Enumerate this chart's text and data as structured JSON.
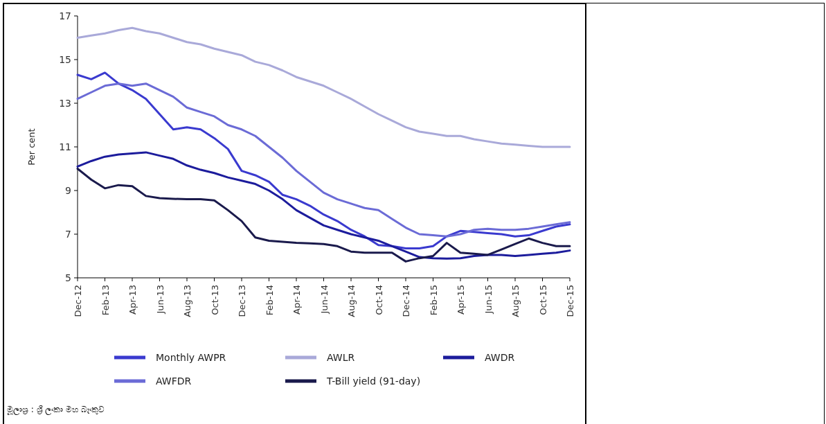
{
  "chart_data": {
    "type": "line",
    "ylabel": "Per cent",
    "ylim": [
      5,
      17
    ],
    "yticks": [
      5,
      7,
      9,
      11,
      13,
      15,
      17
    ],
    "legend": "bottom",
    "categories": [
      "Dec-12",
      null,
      "Feb-13",
      null,
      "Apr-13",
      null,
      "Jun-13",
      null,
      "Aug-13",
      null,
      "Oct-13",
      null,
      "Dec-13",
      null,
      "Feb-14",
      null,
      "Apr-14",
      null,
      "Jun-14",
      null,
      "Aug-14",
      null,
      "Oct-14",
      null,
      "Dec-14",
      null,
      "Feb-15",
      null,
      "Apr-15",
      null,
      "Jun-15",
      null,
      "Aug-15",
      null,
      "Oct-15",
      null,
      "Dec-15"
    ],
    "series": [
      {
        "name": "Monthly AWPR",
        "color": "#3a3acf",
        "values": [
          14.3,
          14.1,
          14.4,
          13.9,
          13.6,
          13.2,
          12.5,
          11.8,
          11.9,
          11.8,
          11.4,
          10.9,
          9.9,
          9.7,
          9.4,
          8.8,
          8.6,
          8.3,
          7.9,
          7.6,
          7.2,
          6.9,
          6.5,
          6.45,
          6.35,
          6.35,
          6.45,
          6.9,
          7.15,
          7.1,
          7.05,
          7.0,
          6.9,
          6.95,
          7.15,
          7.35,
          7.45
        ]
      },
      {
        "name": "AWLR",
        "color": "#a9a9d9",
        "values": [
          16.0,
          16.1,
          16.2,
          16.35,
          16.45,
          16.3,
          16.2,
          16.0,
          15.8,
          15.7,
          15.5,
          15.35,
          15.2,
          14.9,
          14.75,
          14.5,
          14.2,
          14.0,
          13.8,
          13.5,
          13.2,
          12.85,
          12.5,
          12.2,
          11.9,
          11.7,
          11.6,
          11.5,
          11.5,
          11.35,
          11.25,
          11.15,
          11.1,
          11.05,
          11.0,
          11.0,
          11.0
        ]
      },
      {
        "name": "AWDR",
        "color": "#1c1c9c",
        "values": [
          10.1,
          10.35,
          10.55,
          10.65,
          10.7,
          10.75,
          10.6,
          10.45,
          10.15,
          9.95,
          9.8,
          9.6,
          9.45,
          9.3,
          9.0,
          8.6,
          8.1,
          7.75,
          7.4,
          7.2,
          7.0,
          6.85,
          6.7,
          6.45,
          6.2,
          5.95,
          5.9,
          5.88,
          5.9,
          6.0,
          6.05,
          6.05,
          6.0,
          6.05,
          6.1,
          6.15,
          6.25
        ]
      },
      {
        "name": "AWFDR",
        "color": "#6b6bd6",
        "values": [
          13.2,
          13.5,
          13.8,
          13.9,
          13.8,
          13.9,
          13.6,
          13.3,
          12.8,
          12.6,
          12.4,
          12.0,
          11.8,
          11.5,
          11.0,
          10.5,
          9.9,
          9.4,
          8.9,
          8.6,
          8.4,
          8.2,
          8.1,
          7.7,
          7.3,
          7.0,
          6.95,
          6.9,
          7.0,
          7.2,
          7.25,
          7.2,
          7.2,
          7.25,
          7.35,
          7.45,
          7.55
        ]
      },
      {
        "name": "T-Bill yield (91-day)",
        "color": "#1a1a4c",
        "values": [
          10.0,
          9.5,
          9.1,
          9.25,
          9.2,
          8.75,
          8.65,
          8.62,
          8.6,
          8.6,
          8.55,
          8.1,
          7.6,
          6.85,
          6.7,
          6.65,
          6.6,
          6.58,
          6.55,
          6.45,
          6.2,
          6.15,
          6.15,
          6.15,
          5.75,
          5.9,
          6.0,
          6.6,
          6.15,
          6.1,
          6.05,
          6.3,
          6.55,
          6.8,
          6.6,
          6.45,
          6.45
        ]
      }
    ],
    "annotations": [
      "මූලාශ්‍ර : ශ්‍රී ලංකා මහ බැංකුව"
    ]
  }
}
